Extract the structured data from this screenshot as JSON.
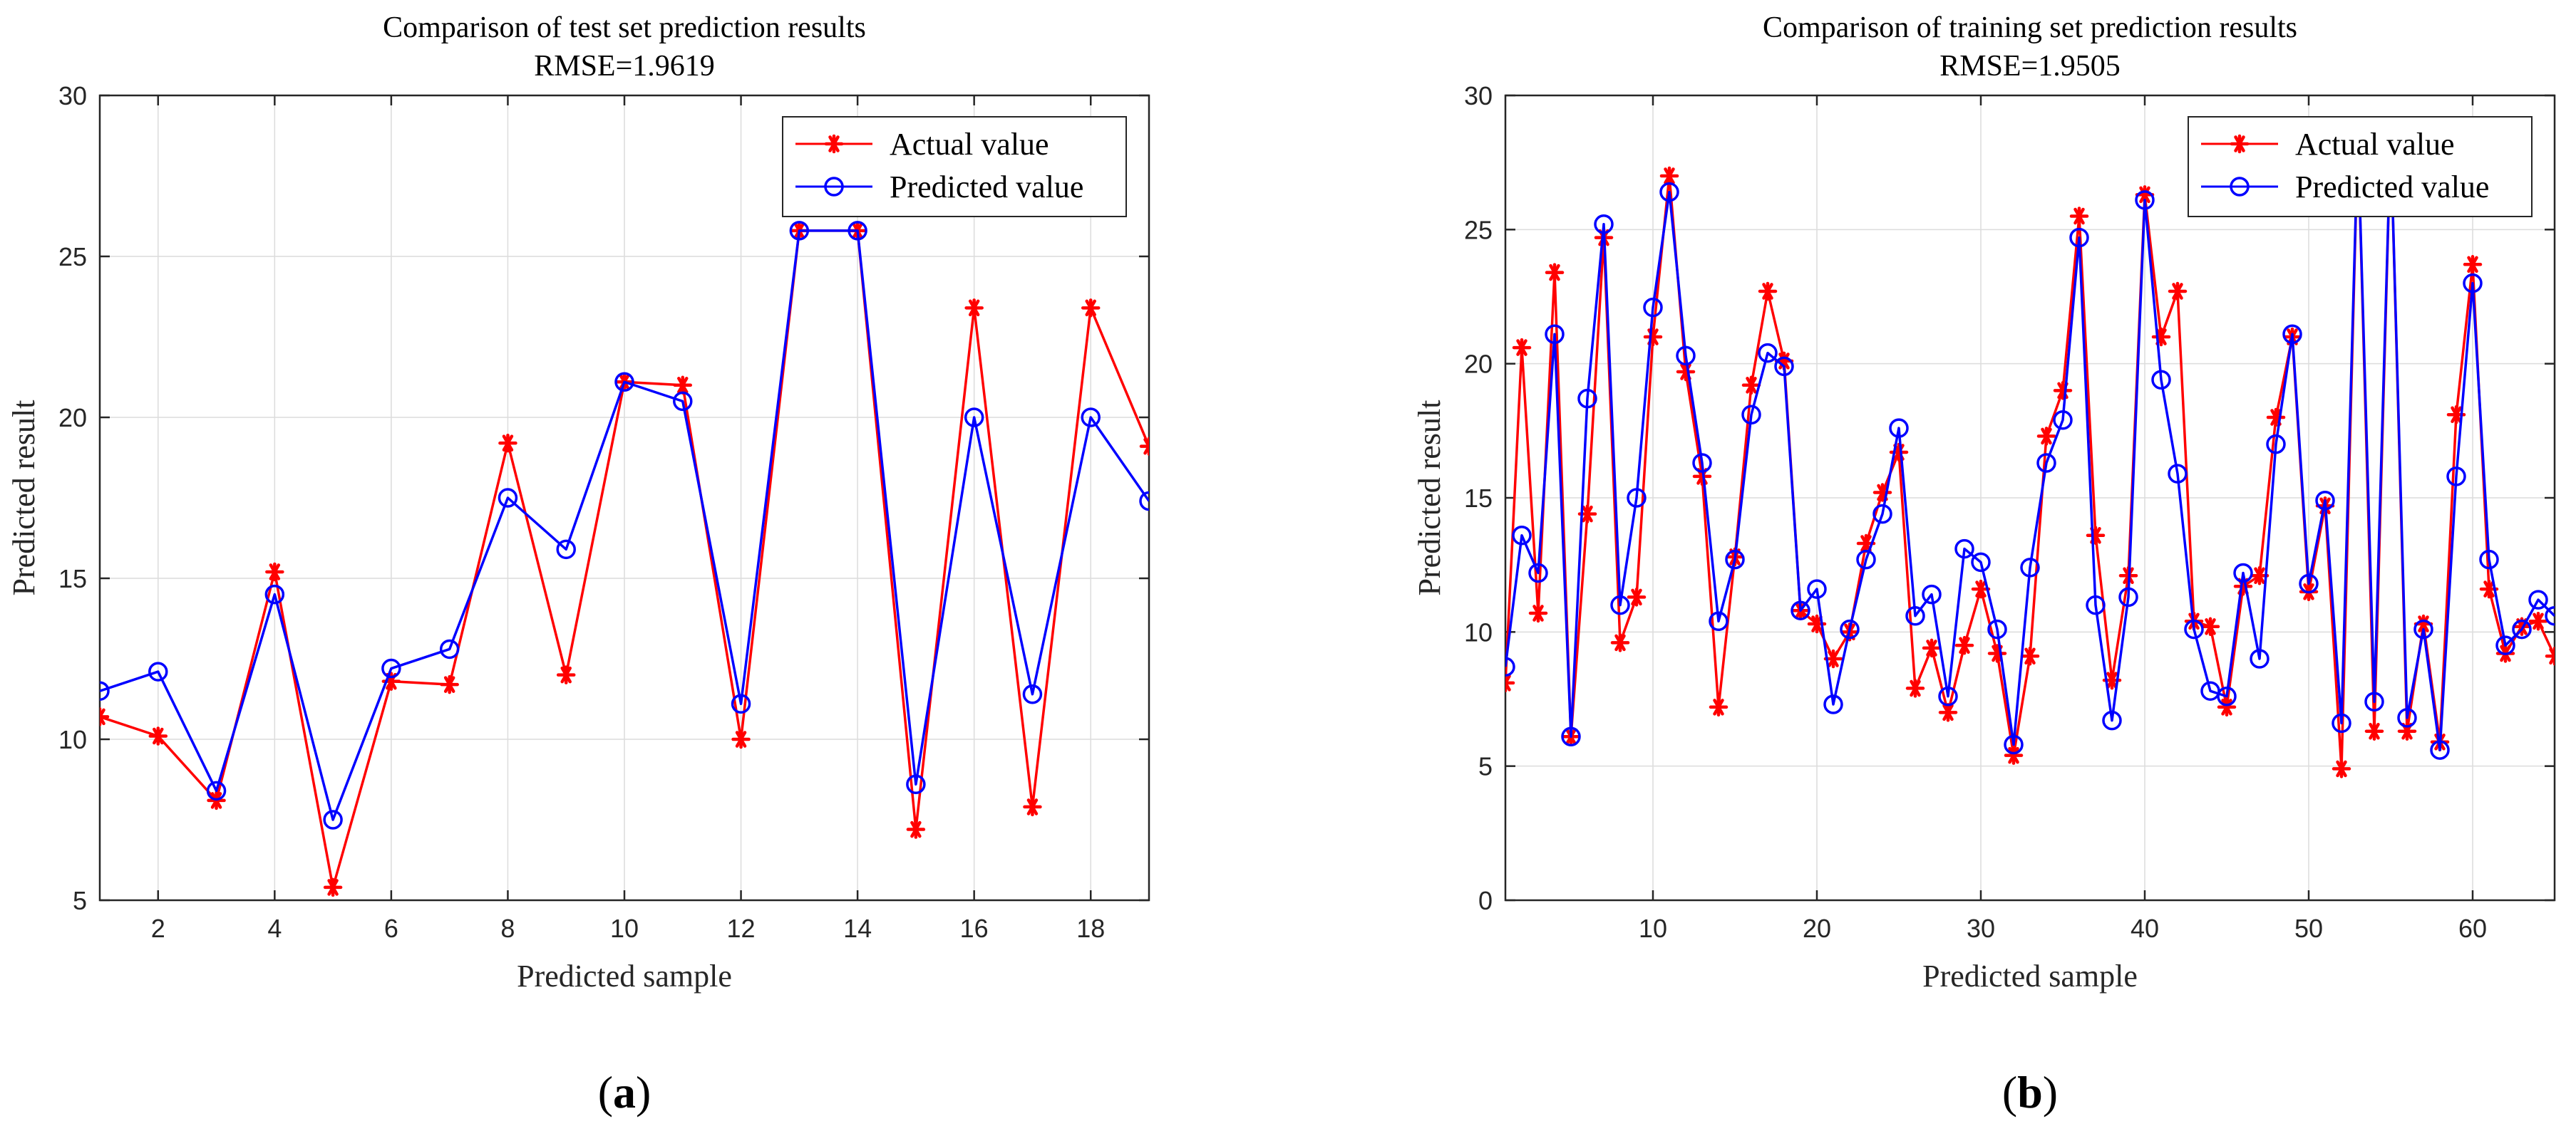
{
  "chart_data": [
    {
      "type": "line",
      "title": "Comparison of test set prediction results",
      "subtitle": "RMSE=1.9619",
      "xlabel": "Predicted sample",
      "ylabel": "Predicted result",
      "xlim": [
        1,
        19
      ],
      "ylim": [
        5,
        30
      ],
      "xticks": [
        2,
        4,
        6,
        8,
        10,
        12,
        14,
        16,
        18
      ],
      "yticks": [
        5,
        10,
        15,
        20,
        25,
        30
      ],
      "grid": true,
      "legend_position": "top-right",
      "caption_letter": "a",
      "x": [
        1,
        2,
        3,
        4,
        5,
        6,
        7,
        8,
        9,
        10,
        11,
        12,
        13,
        14,
        15,
        16,
        17,
        18,
        19
      ],
      "series": [
        {
          "name": "Actual value",
          "color": "#ff0000",
          "marker": "asterisk",
          "values": [
            10.7,
            10.1,
            8.1,
            15.2,
            5.4,
            11.8,
            11.7,
            19.2,
            12.0,
            21.1,
            21.0,
            10.0,
            25.8,
            25.8,
            7.2,
            23.4,
            7.9,
            23.4,
            19.1
          ]
        },
        {
          "name": "Predicted value",
          "color": "#0000ff",
          "marker": "circle",
          "values": [
            11.5,
            12.1,
            8.4,
            14.5,
            7.5,
            12.2,
            12.8,
            17.5,
            15.9,
            21.1,
            20.5,
            11.1,
            25.8,
            25.8,
            8.6,
            20.0,
            11.4,
            20.0,
            17.4
          ]
        }
      ]
    },
    {
      "type": "line",
      "title": "Comparison of training set prediction results",
      "subtitle": "RMSE=1.9505",
      "xlabel": "Predicted sample",
      "ylabel": "Predicted result",
      "xlim": [
        1,
        65
      ],
      "ylim": [
        0,
        30
      ],
      "xticks": [
        10,
        20,
        30,
        40,
        50,
        60
      ],
      "yticks": [
        0,
        5,
        10,
        15,
        20,
        25,
        30
      ],
      "grid": true,
      "legend_position": "top-right",
      "caption_letter": "b",
      "x": [
        1,
        2,
        3,
        4,
        5,
        6,
        7,
        8,
        9,
        10,
        11,
        12,
        13,
        14,
        15,
        16,
        17,
        18,
        19,
        20,
        21,
        22,
        23,
        24,
        25,
        26,
        27,
        28,
        29,
        30,
        31,
        32,
        33,
        34,
        35,
        36,
        37,
        38,
        39,
        40,
        41,
        42,
        43,
        44,
        45,
        46,
        47,
        48,
        49,
        50,
        51,
        52,
        53,
        54,
        55,
        56,
        57,
        58,
        59,
        60,
        61,
        62,
        63,
        64,
        65
      ],
      "series": [
        {
          "name": "Actual value",
          "color": "#ff0000",
          "marker": "asterisk",
          "values": [
            8.1,
            20.6,
            10.7,
            23.4,
            6.1,
            14.4,
            24.7,
            9.6,
            11.3,
            21.0,
            27.0,
            19.7,
            15.8,
            7.2,
            12.8,
            19.2,
            22.7,
            20.1,
            10.8,
            10.3,
            9.0,
            10.0,
            13.3,
            15.2,
            16.7,
            7.9,
            9.4,
            7.0,
            9.5,
            11.6,
            9.2,
            5.4,
            9.1,
            17.3,
            19.0,
            25.5,
            13.6,
            8.2,
            12.1,
            26.3,
            21.0,
            22.7,
            10.4,
            10.2,
            7.2,
            11.7,
            12.1,
            18.0,
            21.0,
            11.5,
            14.7,
            4.9,
            28.5,
            6.3,
            28.5,
            6.3,
            10.3,
            5.9,
            18.1,
            23.7,
            11.6,
            9.2,
            10.2,
            10.4,
            9.1
          ]
        },
        {
          "name": "Predicted value",
          "color": "#0000ff",
          "marker": "circle",
          "values": [
            8.7,
            13.6,
            12.2,
            21.1,
            6.1,
            18.7,
            25.2,
            11.0,
            15.0,
            22.1,
            26.4,
            20.3,
            16.3,
            10.4,
            12.7,
            18.1,
            20.4,
            19.9,
            10.8,
            11.6,
            7.3,
            10.1,
            12.7,
            14.4,
            17.6,
            10.6,
            11.4,
            7.6,
            13.1,
            12.6,
            10.1,
            5.8,
            12.4,
            16.3,
            17.9,
            24.7,
            11.0,
            6.7,
            11.3,
            26.1,
            19.4,
            15.9,
            10.1,
            7.8,
            7.6,
            12.2,
            9.0,
            17.0,
            21.1,
            11.8,
            14.9,
            6.6,
            28.5,
            7.4,
            28.5,
            6.8,
            10.1,
            5.6,
            15.8,
            23.0,
            12.7,
            9.5,
            10.1,
            11.2,
            10.6
          ]
        }
      ]
    }
  ]
}
